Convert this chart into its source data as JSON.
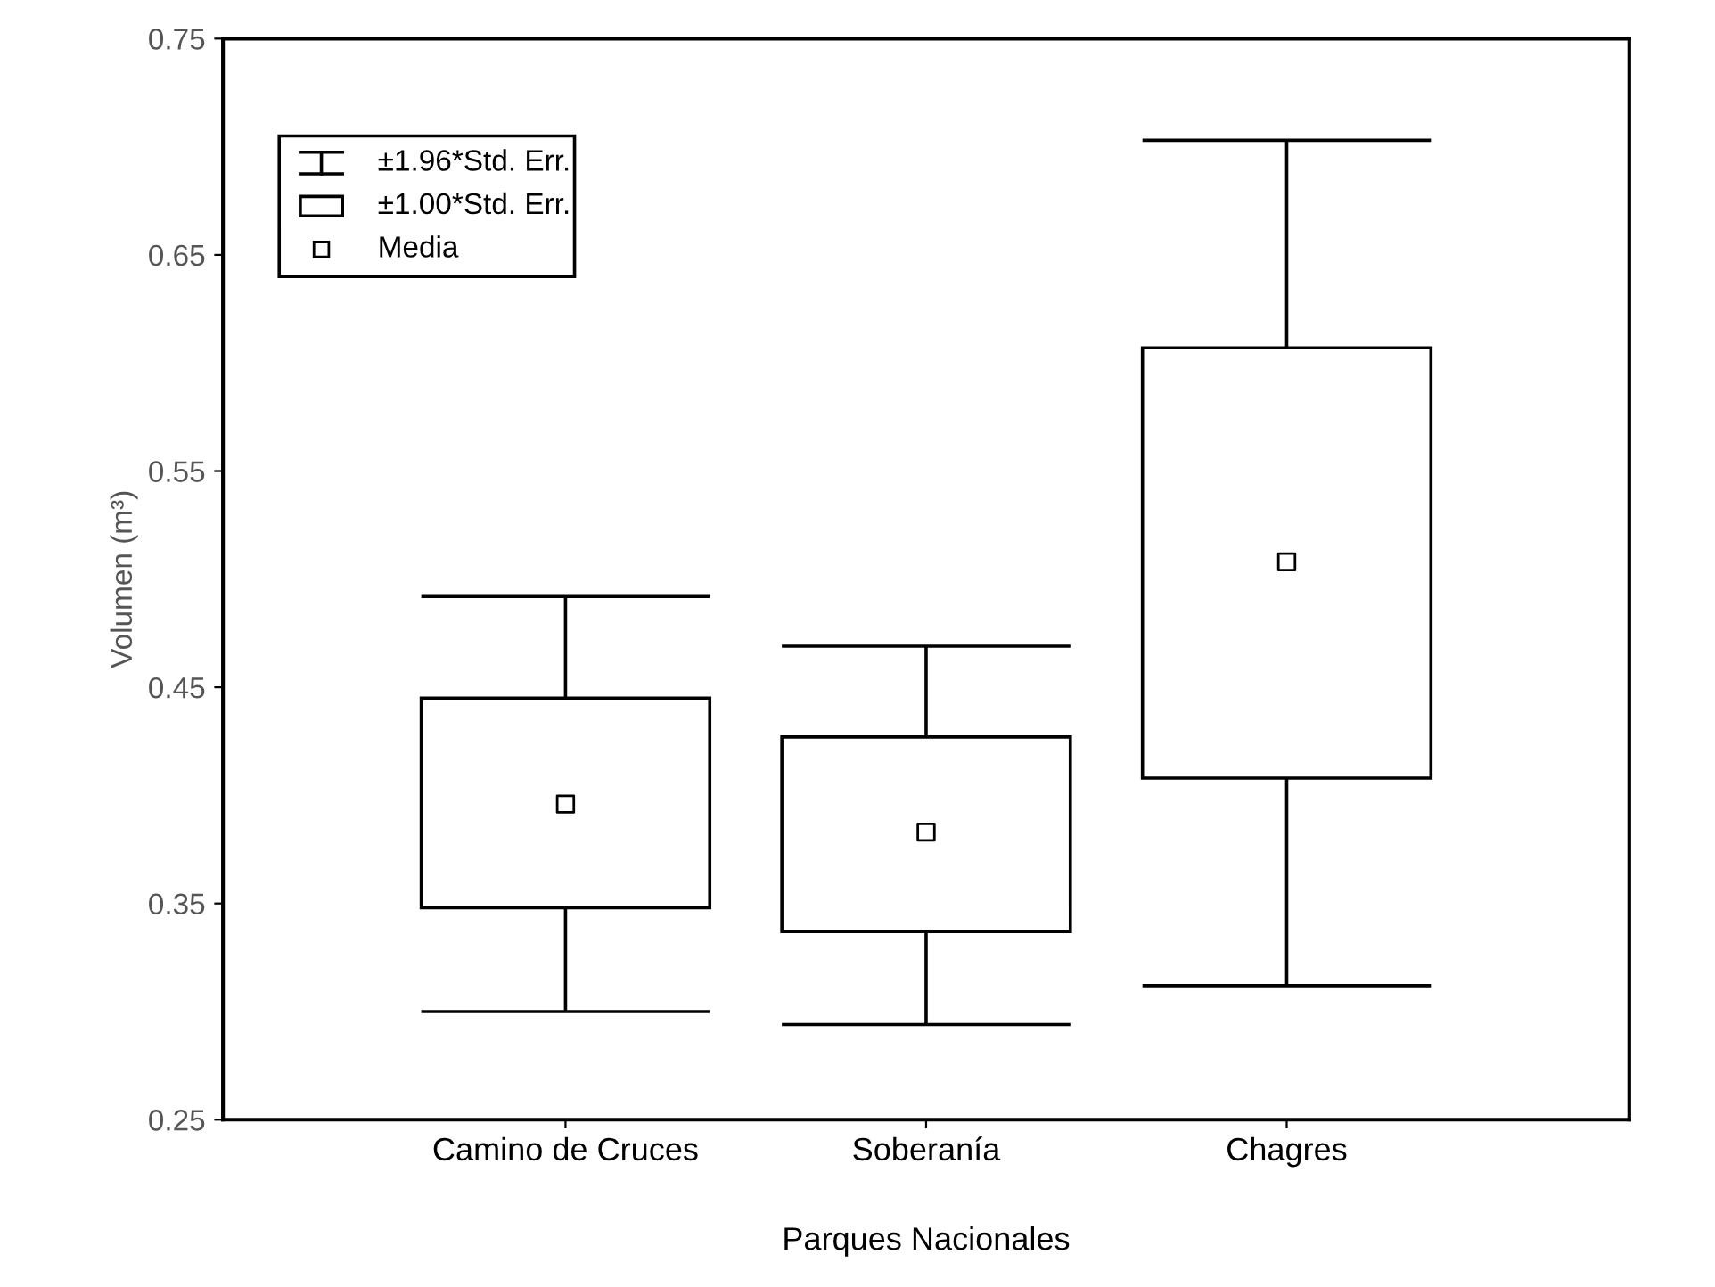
{
  "chart_data": {
    "type": "box",
    "xlabel": "Parques Nacionales",
    "ylabel": "Volumen (m³)",
    "categories": [
      "Camino de Cruces",
      "Soberanía",
      "Chagres"
    ],
    "boxes": [
      {
        "low": 0.3,
        "q1": 0.348,
        "median": 0.396,
        "q3": 0.445,
        "high": 0.492
      },
      {
        "low": 0.294,
        "q1": 0.337,
        "median": 0.383,
        "q3": 0.427,
        "high": 0.469
      },
      {
        "low": 0.312,
        "q1": 0.408,
        "median": 0.508,
        "q3": 0.607,
        "high": 0.703
      }
    ],
    "color": "#000000",
    "ylim": [
      0.25,
      0.75
    ],
    "yticks": [
      0.25,
      0.35,
      0.45,
      0.55,
      0.65,
      0.75
    ],
    "grid": false,
    "marker": "square",
    "annotations": [
      "±1.96*Std. Err.",
      "±1.00*Std. Err.",
      "Media"
    ]
  }
}
